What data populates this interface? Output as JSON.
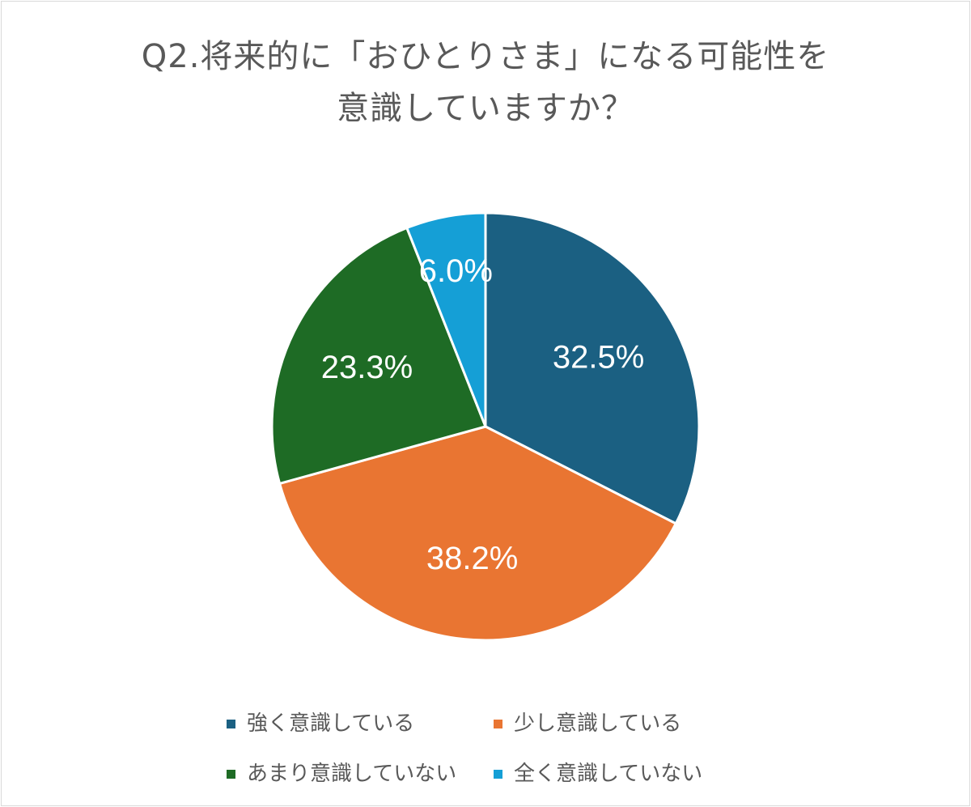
{
  "chart_data": {
    "type": "pie",
    "title_lines": [
      "Q2.将来的に「おひとりさま」になる可能性を",
      "意識していますか？"
    ],
    "slices": [
      {
        "label": "強く意識している",
        "value": 32.5,
        "value_label": "32.5%",
        "color": "#1b6082"
      },
      {
        "label": "少し意識している",
        "value": 38.2,
        "value_label": "38.2%",
        "color": "#e97532"
      },
      {
        "label": "あまり意識していない",
        "value": 23.3,
        "value_label": "23.3%",
        "color": "#1e6b25"
      },
      {
        "label": "全く意識していない",
        "value": 6.0,
        "value_label": "6.0%",
        "color": "#159fd6"
      }
    ],
    "start_angle": "12 o'clock",
    "direction": "clockwise",
    "legend_position": "bottom"
  }
}
